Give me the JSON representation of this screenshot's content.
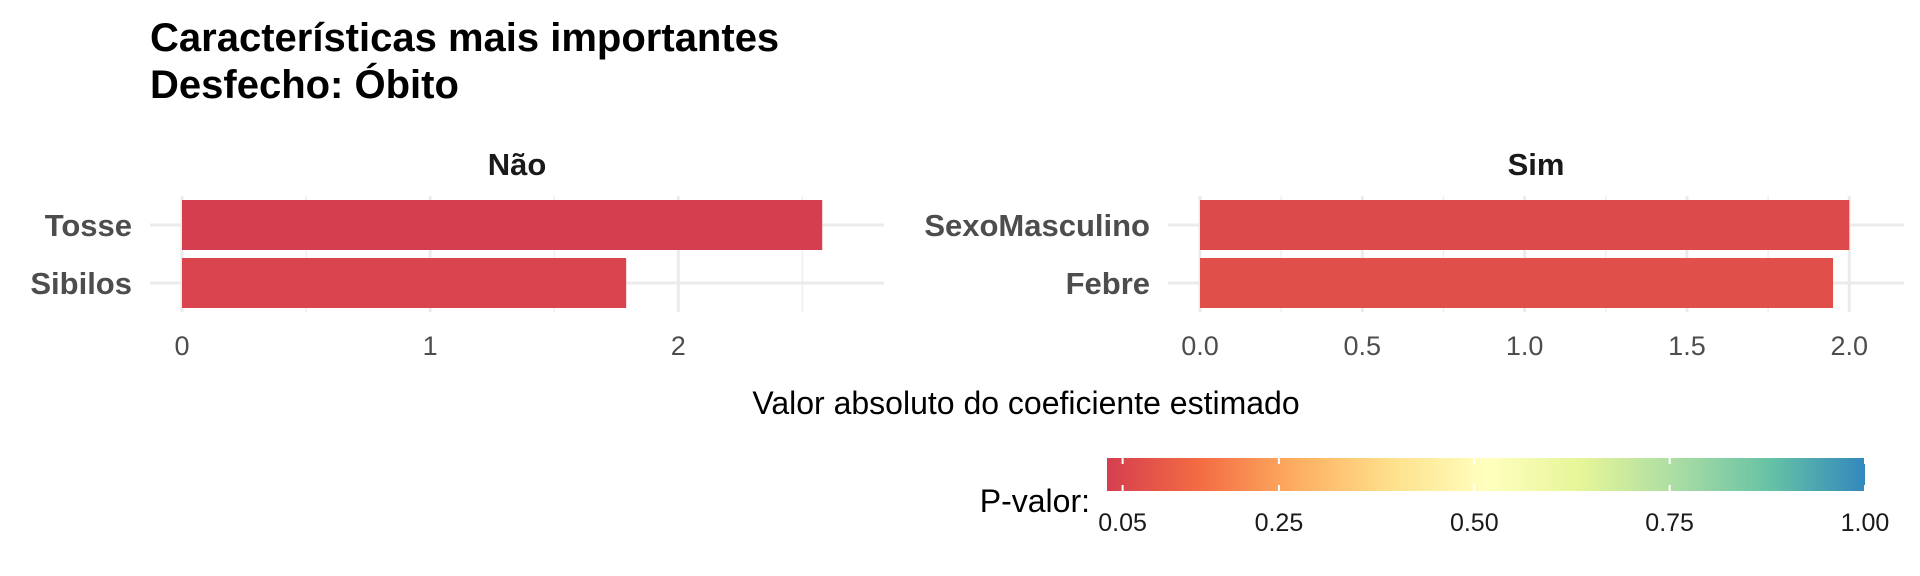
{
  "chart_data": {
    "type": "bar",
    "orientation": "horizontal",
    "title": "Características mais importantes",
    "subtitle": "Desfecho: Óbito",
    "xlabel": "Valor absoluto do coeficiente estimado",
    "grid": true,
    "panels": [
      {
        "strip": "Não",
        "categories": [
          "Tosse",
          "Sibilos"
        ],
        "values": [
          2.58,
          1.79
        ],
        "p_values": [
          0.02,
          0.045
        ],
        "xlim": [
          0,
          2.7
        ],
        "ticks": [
          0,
          1,
          2
        ],
        "tick_labels": [
          "0",
          "1",
          "2"
        ]
      },
      {
        "strip": "Sim",
        "categories": [
          "SexoMasculino",
          "Febre"
        ],
        "values": [
          2.0,
          1.95
        ],
        "p_values": [
          0.06,
          0.075
        ],
        "xlim": [
          0,
          2.07
        ],
        "ticks": [
          0,
          0.5,
          1.0,
          1.5,
          2.0
        ],
        "tick_labels": [
          "0.0",
          "0.5",
          "1.0",
          "1.5",
          "2.0"
        ]
      }
    ],
    "legend": {
      "title": "P-valor:",
      "placement": "bottom",
      "range": [
        0.03,
        1.0
      ],
      "ticks": [
        0.05,
        0.25,
        0.5,
        0.75,
        1.0
      ],
      "tick_labels": [
        "0.05",
        "0.25",
        "0.50",
        "0.75",
        "1.00"
      ],
      "colors": [
        "#d53e4f",
        "#f46d43",
        "#fdae61",
        "#fee08b",
        "#ffffbf",
        "#e6f598",
        "#abdda4",
        "#66c2a5",
        "#3288bd"
      ]
    }
  }
}
